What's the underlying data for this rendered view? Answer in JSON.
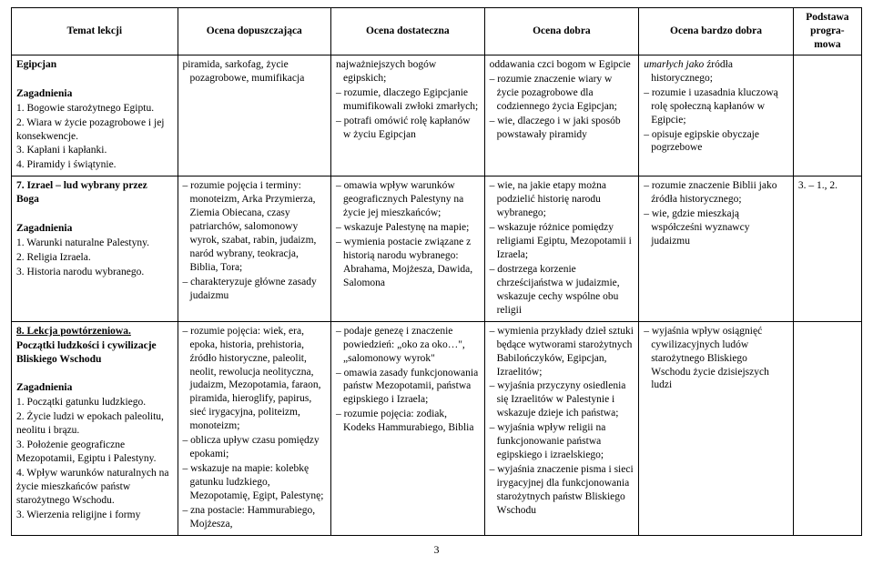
{
  "header": {
    "c1": "Temat lekcji",
    "c2": "Ocena dopuszczająca",
    "c3": "Ocena dostateczna",
    "c4": "Ocena dobra",
    "c5": "Ocena bardzo dobra",
    "c6": "Podstawa progra-mowa"
  },
  "rows": [
    {
      "topic": {
        "title_bold": "Egipcjan",
        "section_bold": "Zagadnienia",
        "items": [
          "1. Bogowie starożytnego Egiptu.",
          "2. Wiara w życie pozagrobowe i jej konsekwencje.",
          "3. Kapłani i kapłanki.",
          "4. Piramidy i świątynie."
        ]
      },
      "g2": [
        "piramida, sarkofag, życie pozagrobowe, mumifikacja"
      ],
      "g3": [
        "najważniejszych bogów egipskich;",
        "– rozumie, dlaczego Egipcjanie mumifikowali zwłoki zmarłych;",
        "– potrafi omówić rolę kapłanów w życiu Egipcjan"
      ],
      "g4": [
        "oddawania czci bogom w Egipcie",
        "– rozumie znaczenie wiary w życie pozagrobowe dla codziennego życia Egipcjan;",
        "– wie, dlaczego i w jaki sposób powstawały piramidy"
      ],
      "g5_lead_italic": "umarłych jako",
      "g5_lead_rest": " źródła historycznego;",
      "g5": [
        "– rozumie i uzasadnia kluczową rolę społeczną kapłanów w Egipcie;",
        "– opisuje egipskie obyczaje pogrzebowe"
      ],
      "basis": ""
    },
    {
      "topic": {
        "title_bold": "7. Izrael – lud wybrany przez Boga",
        "section_bold": "Zagadnienia",
        "items": [
          "1. Warunki naturalne Palestyny.",
          "2. Religia Izraela.",
          "3. Historia narodu wybranego."
        ]
      },
      "g2": [
        "– rozumie pojęcia i terminy: monoteizm, Arka Przymierza, Ziemia Obiecana, czasy patriarchów, salomonowy wyrok, szabat, rabin, judaizm, naród wybrany, teokracja, Biblia, Tora;",
        "– charakteryzuje główne zasady judaizmu"
      ],
      "g3": [
        "– omawia wpływ warunków geograficznych Palestyny na życie jej mieszkańców;",
        "– wskazuje Palestynę na mapie;",
        "– wymienia postacie związane z historią narodu wybranego: Abrahama, Mojżesza, Dawida, Salomona"
      ],
      "g4": [
        "– wie, na jakie etapy można podzielić historię narodu wybranego;",
        "– wskazuje różnice pomiędzy religiami Egiptu, Mezopotamii i Izraela;",
        "– dostrzega korzenie chrześcijaństwa w judaizmie, wskazuje cechy wspólne obu religii"
      ],
      "g5": [
        "– rozumie znaczenie Biblii jako źródła historycznego;",
        "– wie, gdzie mieszkają współcześni wyznawcy judaizmu"
      ],
      "basis": "3. – 1., 2."
    },
    {
      "topic": {
        "title_bold_u": "8. Lekcja powtórzeniowa.",
        "title_bold_2": "Początki ludzkości i cywilizacje Bliskiego Wschodu",
        "section_bold": "Zagadnienia",
        "items": [
          "1. Początki gatunku ludzkiego.",
          "2. Życie ludzi w epokach paleolitu, neolitu i brązu.",
          "3. Położenie geograficzne Mezopotamii, Egiptu i Palestyny.",
          "4. Wpływ warunków naturalnych na życie mieszkańców państw starożytnego Wschodu.",
          "3. Wierzenia religijne i formy"
        ]
      },
      "g2": [
        "– rozumie pojęcia: wiek, era, epoka, historia, prehistoria, źródło historyczne, paleolit, neolit, rewolucja neolityczna, judaizm, Mezopotamia, faraon, piramida, hieroglify, papirus, sieć irygacyjna, politeizm, monoteizm;",
        "– oblicza upływ czasu pomiędzy epokami;",
        "– wskazuje na mapie: kolebkę gatunku ludzkiego, Mezopotamię, Egipt, Palestynę;",
        "– zna postacie: Hammurabiego, Mojżesza,"
      ],
      "g3": [
        "– podaje genezę i znaczenie powiedzień: „oko za oko…\", „salomonowy wyrok\"",
        "– omawia zasady funkcjonowania państw Mezopotamii, państwa egipskiego i Izraela;",
        "– rozumie pojęcia: zodiak, Kodeks Hammurabiego, Biblia"
      ],
      "g4": [
        "– wymienia przykłady dzieł sztuki będące wytworami starożytnych Babilończyków, Egipcjan, Izraelitów;",
        "– wyjaśnia przyczyny osiedlenia się Izraelitów w Palestynie i wskazuje dzieje ich państwa;",
        "– wyjaśnia wpływ religii na funkcjonowanie państwa egipskiego i izraelskiego;",
        "– wyjaśnia znaczenie pisma i sieci irygacyjnej dla funkcjonowania starożytnych państw Bliskiego Wschodu"
      ],
      "g5": [
        "– wyjaśnia wpływ osiągnięć cywilizacyjnych ludów starożytnego Bliskiego Wschodu życie dzisiejszych ludzi"
      ],
      "basis": ""
    }
  ],
  "page_number": "3"
}
